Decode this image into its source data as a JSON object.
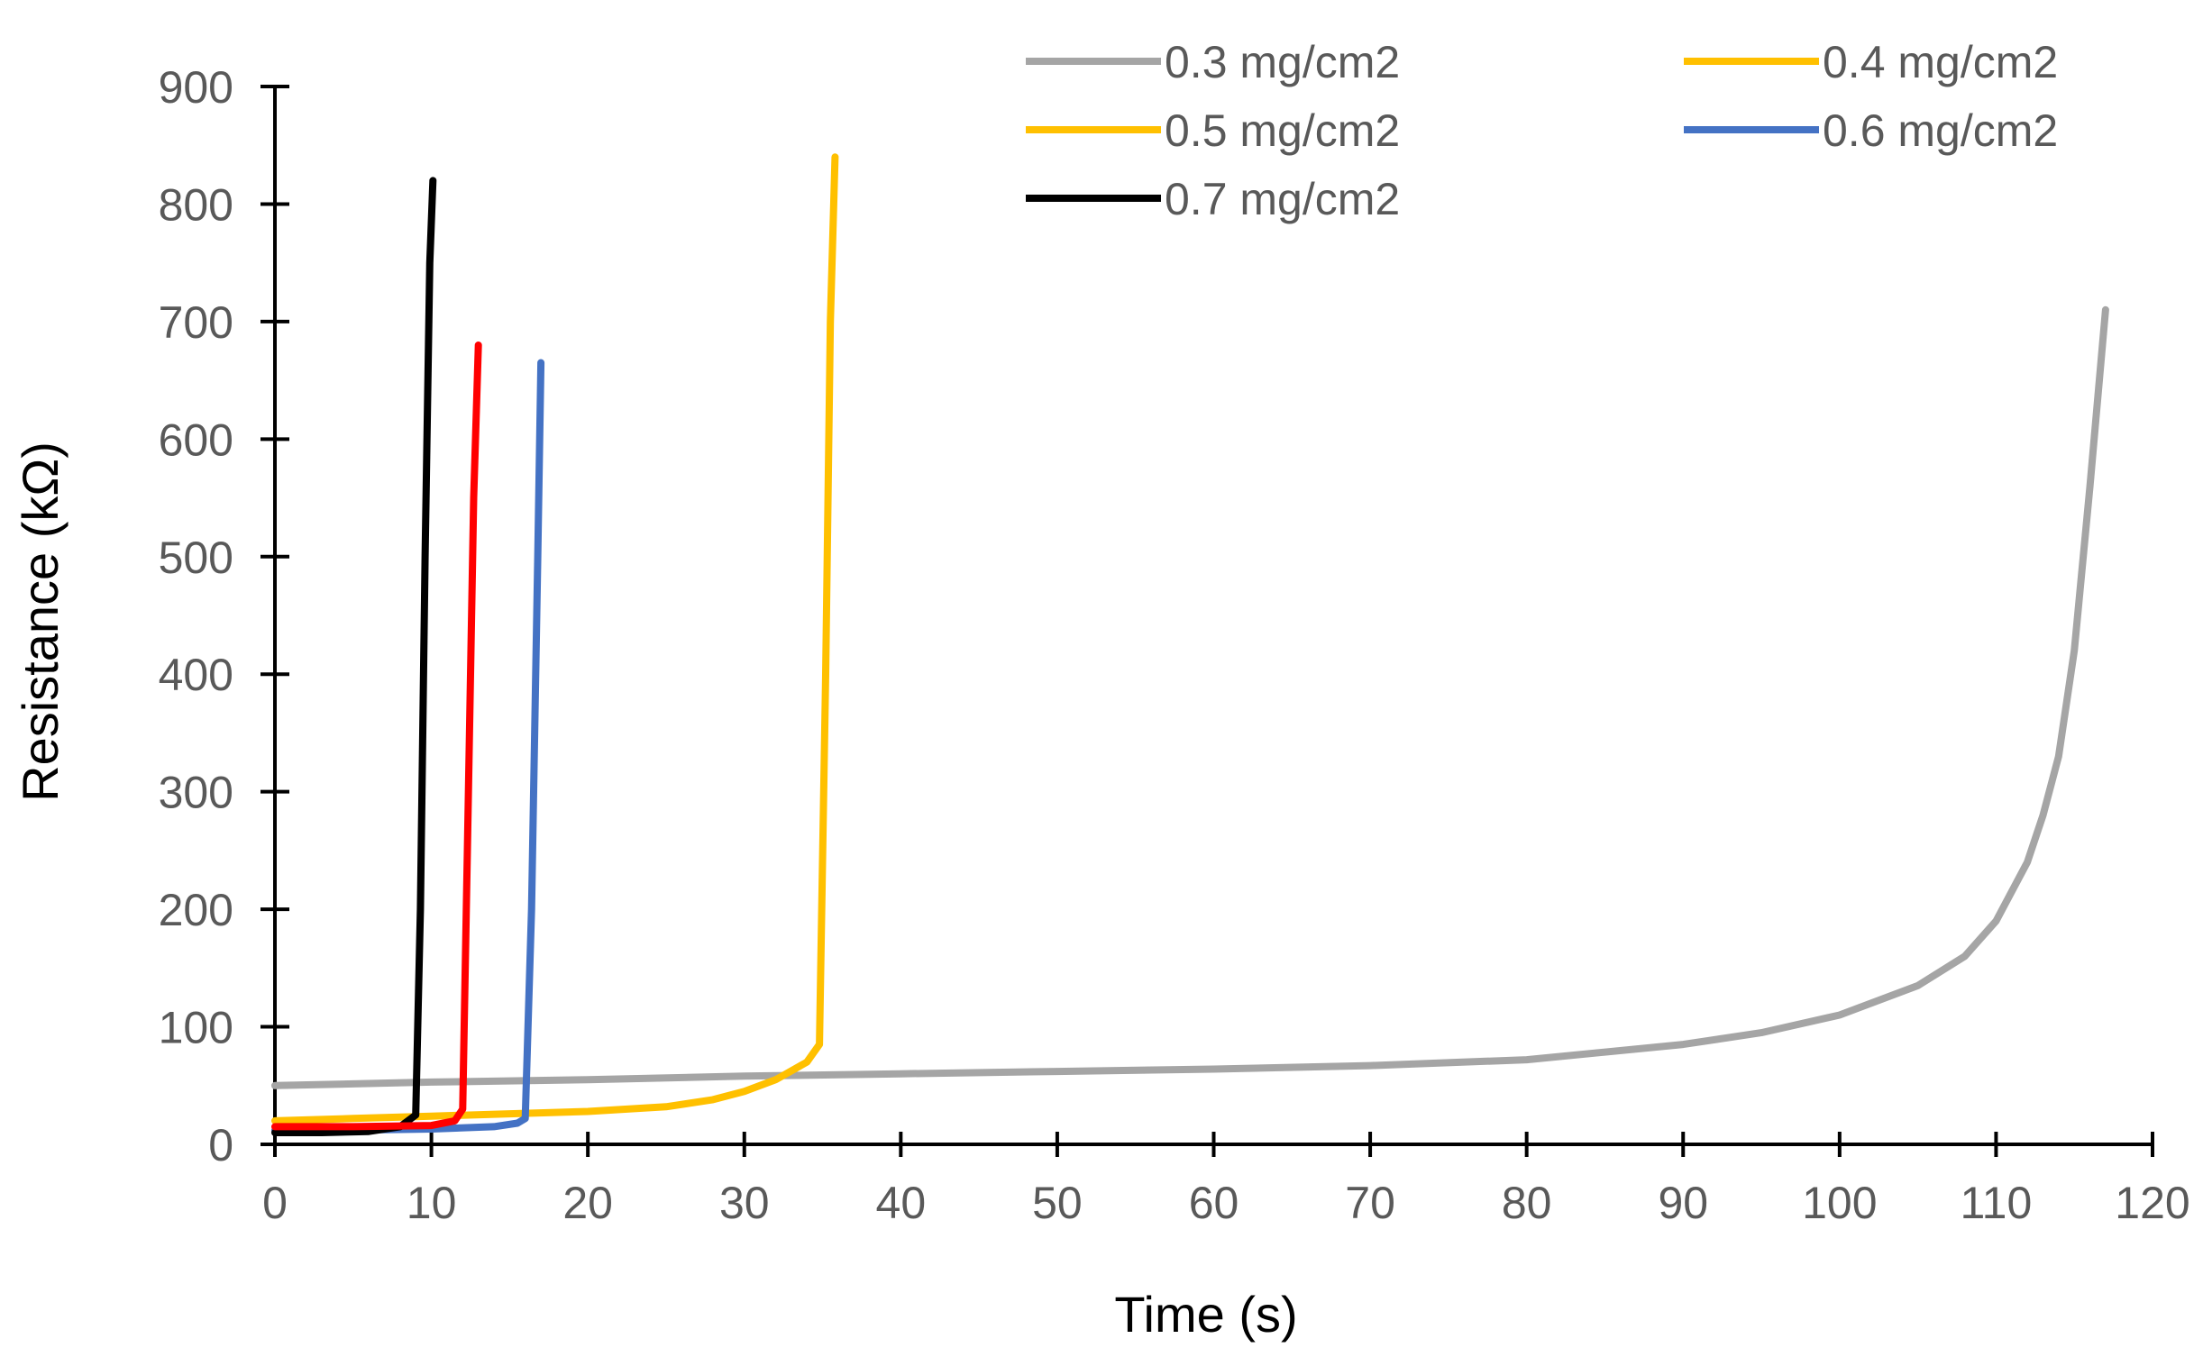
{
  "chart_data": {
    "type": "line",
    "title": "",
    "xlabel": "Time (s)",
    "ylabel": "Resistance (kΩ)",
    "xlim": [
      0,
      120
    ],
    "ylim": [
      0,
      900
    ],
    "xticks": [
      0,
      10,
      20,
      30,
      40,
      50,
      60,
      70,
      80,
      90,
      100,
      110,
      120
    ],
    "yticks": [
      0,
      100,
      200,
      300,
      400,
      500,
      600,
      700,
      800,
      900
    ],
    "grid": false,
    "legend_position": "top-right",
    "series": [
      {
        "name": "0.3 mg/cm2",
        "color": "#A5A5A5",
        "x": [
          0,
          10,
          20,
          30,
          40,
          50,
          60,
          70,
          80,
          90,
          95,
          100,
          105,
          108,
          110,
          112,
          113,
          114,
          115,
          116,
          117
        ],
        "y": [
          50,
          53,
          55,
          58,
          60,
          62,
          64,
          67,
          72,
          85,
          95,
          110,
          135,
          160,
          190,
          240,
          280,
          330,
          420,
          560,
          710
        ]
      },
      {
        "name": "0.4 mg/cm2",
        "color": "#FFC000",
        "x": [
          0,
          5,
          10,
          12,
          13.1,
          13.3,
          13.5
        ],
        "y": [
          18,
          17,
          16,
          16,
          17,
          200,
          0
        ],
        "hidden": true
      },
      {
        "name": "0.5 mg/cm2",
        "color": "#FFC000",
        "x": [
          0,
          5,
          10,
          15,
          20,
          25,
          28,
          30,
          32,
          34,
          34.8,
          35.2,
          35.5,
          35.8
        ],
        "y": [
          20,
          22,
          24,
          26,
          28,
          32,
          38,
          45,
          55,
          70,
          85,
          400,
          700,
          840
        ]
      },
      {
        "name": "0.6 mg/cm2",
        "color": "#4472C4",
        "x": [
          0,
          5,
          10,
          14,
          15.5,
          16,
          16.4,
          16.8,
          17
        ],
        "y": [
          12,
          12,
          13,
          15,
          18,
          22,
          200,
          500,
          665
        ]
      },
      {
        "name": "0.7 mg/cm2",
        "color": "#000000",
        "x": [
          0,
          3,
          6,
          8,
          9,
          9.3,
          9.6,
          9.9,
          10.1
        ],
        "y": [
          10,
          10,
          11,
          15,
          25,
          200,
          500,
          750,
          820
        ]
      },
      {
        "name": "",
        "color": "#FF0000",
        "x": [
          0,
          5,
          10,
          11.5,
          12,
          12.3,
          12.7,
          13
        ],
        "y": [
          15,
          15,
          16,
          20,
          30,
          250,
          550,
          680
        ]
      }
    ]
  }
}
